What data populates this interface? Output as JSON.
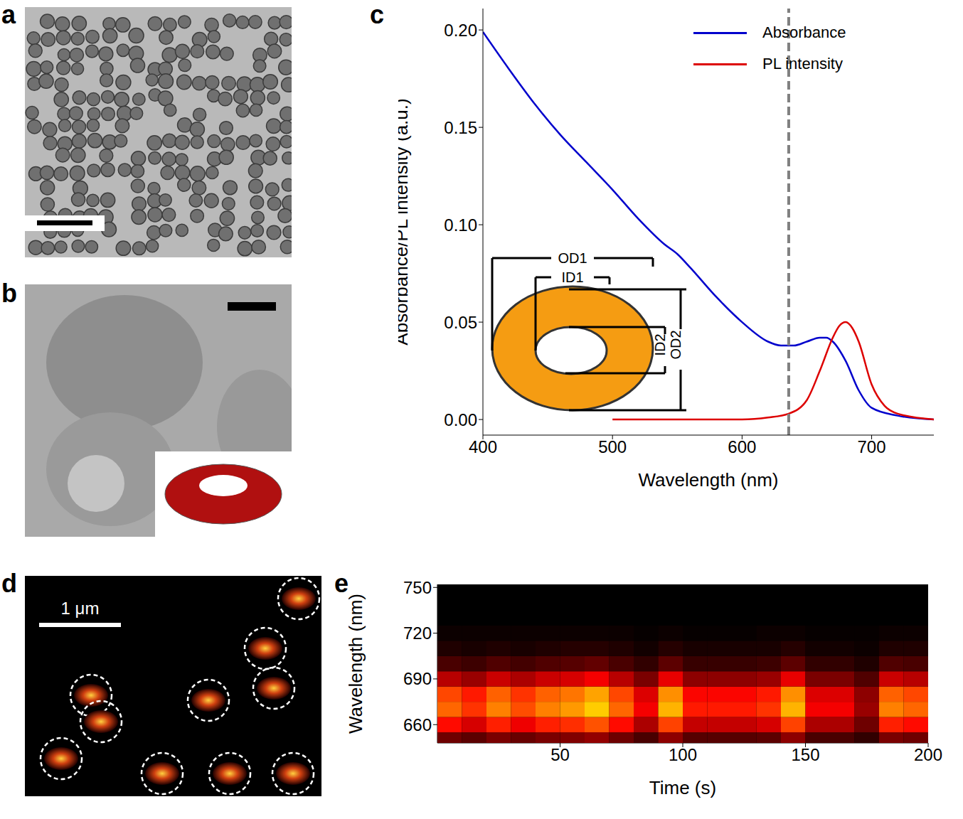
{
  "panel_labels": [
    "a",
    "b",
    "c",
    "d",
    "e"
  ],
  "panel_d": {
    "scale_bar": "1 μm"
  },
  "chart_data": [
    {
      "type": "line",
      "xlabel": "Wavelength (nm)",
      "ylabel": "Absorbance/PL intensity (a.u.)",
      "xlim": [
        400,
        748
      ],
      "ylim": [
        -0.008,
        0.211
      ],
      "xticks": [
        400,
        500,
        600,
        700
      ],
      "yticks": [
        {
          "value": 0,
          "label": "0.00"
        },
        {
          "value": 0.05,
          "label": "0.05"
        },
        {
          "value": 0.1,
          "label": "0.10"
        },
        {
          "value": 0.15,
          "label": "0.15"
        },
        {
          "value": 0.2,
          "label": "0.20"
        }
      ],
      "legend": "upper right",
      "annotations": [
        "OD1",
        "ID1",
        "ID2",
        "OD2"
      ],
      "reference_line": {
        "x": 636,
        "color": "#808080",
        "line_style": "dashed"
      },
      "series": [
        {
          "name": "Absorbance",
          "color": "#0000cc",
          "x": [
            400,
            420,
            440,
            460,
            480,
            500,
            520,
            540,
            550,
            560,
            580,
            600,
            620,
            630,
            640,
            650,
            660,
            665,
            670,
            680,
            690,
            700,
            720,
            748
          ],
          "values": [
            0.199,
            0.18,
            0.162,
            0.146,
            0.132,
            0.118,
            0.103,
            0.09,
            0.085,
            0.078,
            0.063,
            0.05,
            0.04,
            0.038,
            0.038,
            0.04,
            0.042,
            0.042,
            0.04,
            0.03,
            0.015,
            0.006,
            0.002,
            0.0
          ]
        },
        {
          "name": "PL intensity",
          "color": "#dd0000",
          "x": [
            500,
            600,
            620,
            636,
            650,
            660,
            670,
            675,
            680,
            685,
            690,
            700,
            710,
            720,
            748
          ],
          "values": [
            0.0,
            0.0,
            0.001,
            0.003,
            0.01,
            0.025,
            0.042,
            0.048,
            0.05,
            0.047,
            0.04,
            0.018,
            0.007,
            0.003,
            0.0
          ]
        }
      ]
    },
    {
      "type": "heatmap",
      "xlabel": "Time (s)",
      "ylabel": "Wavelength (nm)",
      "xlim": [
        0,
        200
      ],
      "ylim": [
        648,
        752
      ],
      "xticks": [
        50,
        100,
        150,
        200
      ],
      "yticks": [
        660,
        690,
        720,
        750
      ],
      "x": [
        5,
        15,
        25,
        35,
        45,
        55,
        65,
        75,
        85,
        95,
        105,
        115,
        125,
        135,
        145,
        155,
        165,
        175,
        185,
        195
      ],
      "y": [
        650,
        660,
        670,
        680,
        690,
        700,
        710,
        720
      ],
      "cells": [
        [
          0.18,
          0.15,
          0.2,
          0.17,
          0.2,
          0.21,
          0.24,
          0.18,
          0.12,
          0.23,
          0.14,
          0.14,
          0.14,
          0.15,
          0.23,
          0.12,
          0.12,
          0.08,
          0.2,
          0.18
        ],
        [
          0.42,
          0.35,
          0.46,
          0.39,
          0.46,
          0.49,
          0.56,
          0.42,
          0.28,
          0.53,
          0.32,
          0.32,
          0.32,
          0.35,
          0.53,
          0.28,
          0.28,
          0.18,
          0.46,
          0.42
        ],
        [
          0.6,
          0.5,
          0.65,
          0.55,
          0.65,
          0.7,
          0.8,
          0.6,
          0.4,
          0.75,
          0.45,
          0.45,
          0.45,
          0.5,
          0.75,
          0.4,
          0.4,
          0.25,
          0.65,
          0.6
        ],
        [
          0.54,
          0.45,
          0.59,
          0.5,
          0.59,
          0.63,
          0.72,
          0.54,
          0.36,
          0.68,
          0.41,
          0.41,
          0.41,
          0.45,
          0.68,
          0.36,
          0.36,
          0.23,
          0.59,
          0.54
        ],
        [
          0.3,
          0.25,
          0.33,
          0.28,
          0.33,
          0.35,
          0.4,
          0.3,
          0.2,
          0.38,
          0.23,
          0.23,
          0.23,
          0.25,
          0.38,
          0.2,
          0.2,
          0.13,
          0.33,
          0.3
        ],
        [
          0.12,
          0.1,
          0.13,
          0.11,
          0.13,
          0.14,
          0.16,
          0.12,
          0.08,
          0.15,
          0.09,
          0.09,
          0.09,
          0.1,
          0.15,
          0.08,
          0.08,
          0.05,
          0.13,
          0.12
        ],
        [
          0.05,
          0.04,
          0.05,
          0.04,
          0.05,
          0.06,
          0.06,
          0.05,
          0.03,
          0.06,
          0.04,
          0.04,
          0.04,
          0.04,
          0.06,
          0.03,
          0.03,
          0.02,
          0.05,
          0.05
        ],
        [
          0.02,
          0.02,
          0.02,
          0.02,
          0.02,
          0.02,
          0.02,
          0.02,
          0.01,
          0.02,
          0.01,
          0.01,
          0.01,
          0.02,
          0.02,
          0.01,
          0.01,
          0.01,
          0.02,
          0.02
        ]
      ]
    }
  ]
}
